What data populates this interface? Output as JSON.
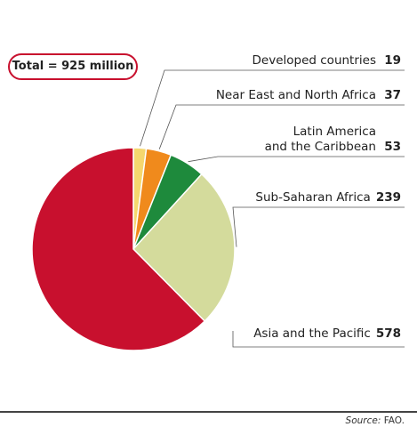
{
  "total_label": "Total = 925 million",
  "source": {
    "label": "Source:",
    "text": "FAO."
  },
  "chart_data": {
    "type": "pie",
    "total": 925,
    "slices": [
      {
        "name": "Developed countries",
        "value": 19,
        "color": "#f5d76e"
      },
      {
        "name": "Near East and North Africa",
        "value": 37,
        "color": "#f08a1c"
      },
      {
        "name": "Latin America\nand the Caribbean",
        "value": 53,
        "color": "#1e8a3c"
      },
      {
        "name": "Sub-Saharan Africa",
        "value": 239,
        "color": "#d4db9c"
      },
      {
        "name": "Asia and the Pacific",
        "value": 578,
        "color": "#c8102e"
      }
    ],
    "legend": "right"
  }
}
